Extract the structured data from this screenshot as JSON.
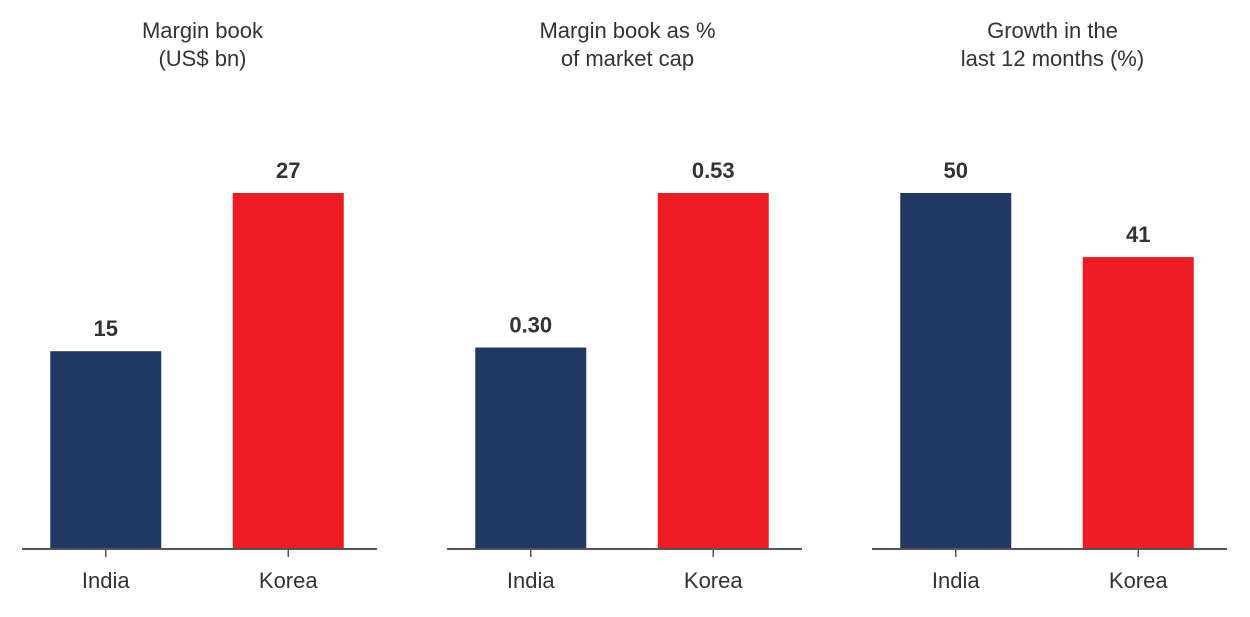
{
  "chart_data": [
    {
      "type": "bar",
      "title": [
        "Margin book",
        "(US$ bn)"
      ],
      "categories": [
        "India",
        "Korea"
      ],
      "values": [
        15,
        27
      ],
      "colors": [
        "#213864",
        "#ed1c24"
      ],
      "ylim": [
        0,
        27
      ]
    },
    {
      "type": "bar",
      "title": [
        "Margin book as %",
        "of market cap"
      ],
      "categories": [
        "India",
        "Korea"
      ],
      "values": [
        0.3,
        0.53
      ],
      "value_labels": [
        "0.30",
        "0.53"
      ],
      "colors": [
        "#213864",
        "#ed1c24"
      ],
      "ylim": [
        0,
        0.53
      ]
    },
    {
      "type": "bar",
      "title": [
        "Growth in the",
        "last 12 months (%)"
      ],
      "categories": [
        "India",
        "Korea"
      ],
      "values": [
        50,
        41
      ],
      "colors": [
        "#213864",
        "#ed1c24"
      ],
      "ylim": [
        0,
        50
      ]
    }
  ]
}
